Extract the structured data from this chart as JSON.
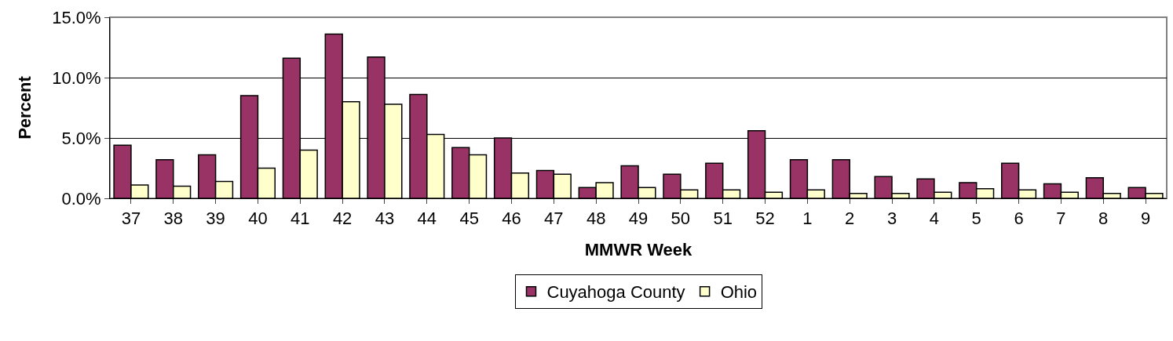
{
  "chart_data": {
    "type": "bar",
    "xlabel": "MMWR Week",
    "ylabel": "Percent",
    "categories": [
      "37",
      "38",
      "39",
      "40",
      "41",
      "42",
      "43",
      "44",
      "45",
      "46",
      "47",
      "48",
      "49",
      "50",
      "51",
      "52",
      "1",
      "2",
      "3",
      "4",
      "5",
      "6",
      "7",
      "8",
      "9"
    ],
    "series": [
      {
        "name": "Cuyahoga County",
        "color": "#993366",
        "values": [
          4.4,
          3.2,
          3.6,
          8.5,
          11.6,
          13.6,
          11.7,
          8.6,
          4.2,
          5.0,
          2.3,
          0.9,
          2.7,
          2.0,
          2.9,
          5.6,
          3.2,
          3.2,
          1.8,
          1.6,
          1.3,
          2.9,
          1.2,
          1.7,
          0.9
        ]
      },
      {
        "name": "Ohio",
        "color": "#ffffcc",
        "values": [
          1.1,
          1.0,
          1.4,
          2.5,
          4.0,
          8.0,
          7.8,
          5.3,
          3.6,
          2.1,
          2.0,
          1.3,
          0.9,
          0.7,
          0.7,
          0.5,
          0.7,
          0.4,
          0.4,
          0.5,
          0.8,
          0.7,
          0.5,
          0.4,
          0.4
        ]
      }
    ],
    "ylim": [
      0,
      15
    ],
    "yticks": [
      {
        "value": 0,
        "label": "0.0%"
      },
      {
        "value": 5,
        "label": "5.0%"
      },
      {
        "value": 10,
        "label": "10.0%"
      },
      {
        "value": 15,
        "label": "15.0%"
      }
    ],
    "grid": "y",
    "legend": "bottom"
  }
}
